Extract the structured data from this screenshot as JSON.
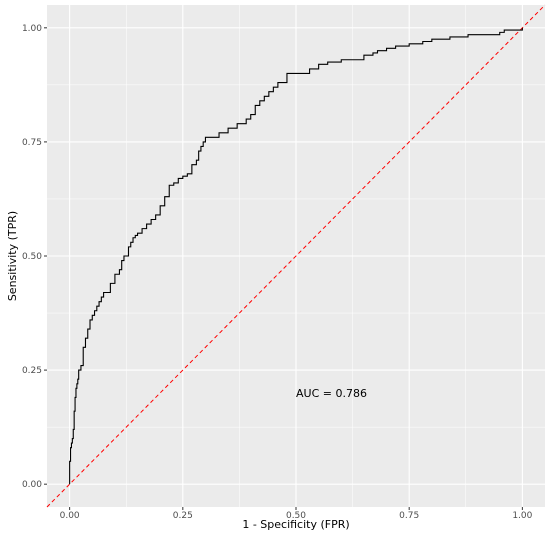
{
  "chart_data": {
    "type": "line",
    "title": "",
    "xlabel": "1 - Specificity (FPR)",
    "ylabel": "Sensitivity (TPR)",
    "xlim": [
      -0.05,
      1.05
    ],
    "ylim": [
      -0.05,
      1.05
    ],
    "x_ticks": [
      0.0,
      0.25,
      0.5,
      0.75,
      1.0
    ],
    "y_ticks": [
      0.0,
      0.25,
      0.5,
      0.75,
      1.0
    ],
    "x_tick_labels": [
      "0.00",
      "0.25",
      "0.50",
      "0.75",
      "1.00"
    ],
    "y_tick_labels": [
      "0.00",
      "0.25",
      "0.50",
      "0.75",
      "1.00"
    ],
    "grid": true,
    "colors": {
      "panel": "#ebebeb",
      "grid": "#ffffff",
      "roc": "#000000",
      "diagonal": "#ff0000"
    },
    "series": [
      {
        "style": "step",
        "x": [
          0.0,
          0.0,
          0.002,
          0.004,
          0.006,
          0.008,
          0.01,
          0.012,
          0.014,
          0.016,
          0.018,
          0.02,
          0.025,
          0.03,
          0.035,
          0.04,
          0.045,
          0.05,
          0.055,
          0.06,
          0.065,
          0.07,
          0.075,
          0.08,
          0.09,
          0.1,
          0.11,
          0.115,
          0.12,
          0.125,
          0.13,
          0.135,
          0.14,
          0.145,
          0.15,
          0.16,
          0.17,
          0.18,
          0.19,
          0.2,
          0.21,
          0.22,
          0.23,
          0.24,
          0.25,
          0.26,
          0.27,
          0.28,
          0.285,
          0.29,
          0.295,
          0.3,
          0.31,
          0.33,
          0.35,
          0.37,
          0.39,
          0.4,
          0.41,
          0.42,
          0.43,
          0.44,
          0.45,
          0.46,
          0.47,
          0.48,
          0.5,
          0.53,
          0.55,
          0.57,
          0.6,
          0.63,
          0.65,
          0.67,
          0.68,
          0.7,
          0.72,
          0.75,
          0.78,
          0.8,
          0.84,
          0.88,
          0.95,
          0.96,
          1.0
        ],
        "y": [
          0.0,
          0.05,
          0.08,
          0.09,
          0.1,
          0.12,
          0.16,
          0.19,
          0.21,
          0.22,
          0.23,
          0.25,
          0.26,
          0.3,
          0.32,
          0.34,
          0.36,
          0.37,
          0.38,
          0.39,
          0.4,
          0.41,
          0.42,
          0.42,
          0.44,
          0.46,
          0.47,
          0.49,
          0.5,
          0.5,
          0.52,
          0.53,
          0.54,
          0.545,
          0.55,
          0.56,
          0.57,
          0.58,
          0.59,
          0.61,
          0.63,
          0.655,
          0.66,
          0.67,
          0.675,
          0.68,
          0.7,
          0.71,
          0.73,
          0.74,
          0.75,
          0.76,
          0.76,
          0.77,
          0.78,
          0.79,
          0.8,
          0.81,
          0.83,
          0.84,
          0.85,
          0.86,
          0.87,
          0.88,
          0.88,
          0.9,
          0.9,
          0.91,
          0.92,
          0.925,
          0.93,
          0.93,
          0.94,
          0.945,
          0.95,
          0.955,
          0.96,
          0.965,
          0.97,
          0.975,
          0.98,
          0.985,
          0.99,
          0.995,
          1.0
        ]
      },
      {
        "style": "dashed",
        "x": [
          -0.05,
          1.05
        ],
        "y": [
          -0.05,
          1.05
        ]
      }
    ],
    "annotations": [
      {
        "text": "AUC = 0.786",
        "x": 0.5,
        "y": 0.2
      }
    ]
  }
}
